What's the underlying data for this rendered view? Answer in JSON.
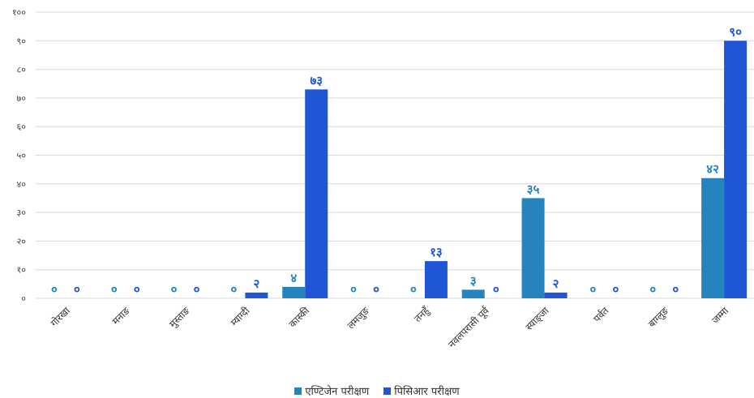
{
  "chart_data": {
    "type": "bar",
    "categories": [
      "गोरखा",
      "मनाङ",
      "मुस्ताङ",
      "म्याग्दी",
      "कास्की",
      "लमजुङ",
      "तनहुँ",
      "नवलपरासी पूर्व",
      "स्याङ्जा",
      "पर्वत",
      "बाग्लुङ",
      "जम्मा"
    ],
    "series": [
      {
        "name": "एण्टिजेन परीक्षण",
        "color": "#2584bd",
        "values": [
          0,
          0,
          0,
          0,
          4,
          0,
          0,
          3,
          35,
          0,
          0,
          42
        ],
        "labels": [
          "०",
          "०",
          "०",
          "०",
          "४",
          "०",
          "०",
          "३",
          "३५",
          "०",
          "०",
          "४२"
        ]
      },
      {
        "name": "पिसिआर परीक्षण",
        "color": "#1f56d6",
        "values": [
          0,
          0,
          0,
          2,
          73,
          0,
          13,
          0,
          2,
          0,
          0,
          90
        ],
        "labels": [
          "०",
          "०",
          "०",
          "२",
          "७३",
          "०",
          "१३",
          "०",
          "२",
          "०",
          "०",
          "९०"
        ]
      }
    ],
    "ylim": [
      0,
      100
    ],
    "yticks": [
      0,
      10,
      20,
      30,
      40,
      50,
      60,
      70,
      80,
      90,
      100
    ],
    "ytick_labels": [
      "०",
      "१०",
      "२०",
      "३०",
      "४०",
      "५०",
      "६०",
      "७०",
      "८०",
      "९०",
      "१००"
    ],
    "grid": true,
    "legend_position": "bottom"
  }
}
